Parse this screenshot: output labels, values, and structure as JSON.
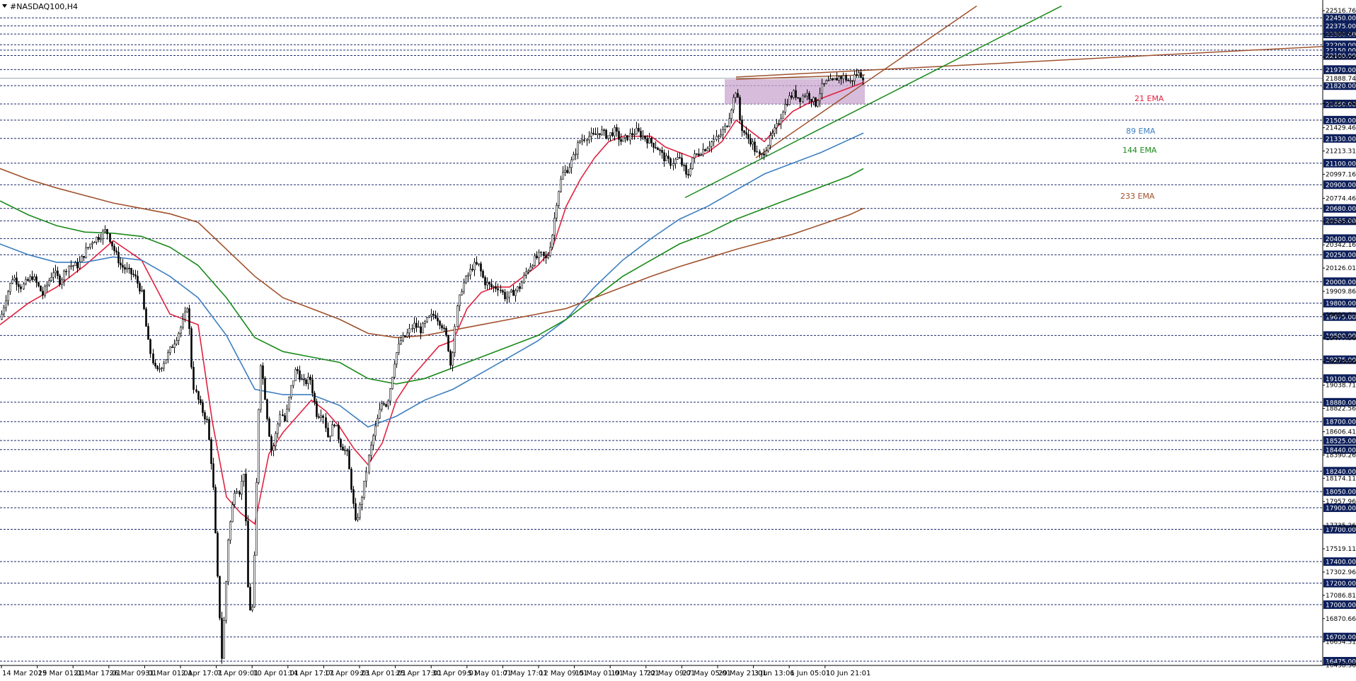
{
  "chart_data": {
    "type": "candlestick",
    "symbol": "#NASDAQ100,H4",
    "ylim": [
      16475,
      22550
    ],
    "grid": false,
    "x_ticks": [
      "14 Mar 2025",
      "19 Mar 01:01",
      "21 Mar 17:01",
      "26 Mar 09:01",
      "31 Mar 01:01",
      "2 Apr 17:01",
      "7 Apr 09:01",
      "10 Apr 01:01",
      "14 Apr 17:01",
      "17 Apr 09:01",
      "23 Apr 01:01",
      "25 Apr 17:01",
      "30 Apr 09:01",
      "5 May 01:01",
      "7 May 17:01",
      "12 May 09:01",
      "15 May 01:01",
      "19 May 17:01",
      "22 May 09:01",
      "27 May 05:01",
      "29 May 21:01",
      "3 Jun 13:01",
      "6 Jun 05:01",
      "10 Jun 21:01"
    ],
    "y_ticks": [
      "22516.76",
      "22300.91",
      "22085.06",
      "21869.21",
      "21653.36",
      "21429.46",
      "21213.31",
      "20997.16",
      "20774.46",
      "20558.31",
      "20342.16",
      "20126.01",
      "19909.86",
      "19693.71",
      "19477.56",
      "19254.86",
      "19038.71",
      "18822.56",
      "18606.41",
      "18390.26",
      "18174.11",
      "17957.96",
      "17735.26",
      "17519.11",
      "17302.96",
      "17086.81",
      "16870.66",
      "16654.51",
      "16438.36"
    ],
    "level_labels": [
      "22450.00",
      "22375.00",
      "22300.00",
      "22200.00",
      "22150.00",
      "22100.00",
      "21970.00",
      "21820.00",
      "21650.00",
      "21500.00",
      "21330.00",
      "21100.00",
      "20900.00",
      "20680.00",
      "20565.00",
      "20400.00",
      "20250.00",
      "20000.00",
      "19800.00",
      "19675.00",
      "19500.00",
      "19275.00",
      "19100.00",
      "18880.00",
      "18700.00",
      "18525.00",
      "18440.00",
      "18240.00",
      "18050.00",
      "17900.00",
      "17700.00",
      "17400.00",
      "17200.00",
      "17000.00",
      "16700.00",
      "16475.00"
    ],
    "current_price": "21888.74",
    "ema_labels": [
      {
        "text": "21 EMA",
        "color": "#e0223f"
      },
      {
        "text": "89 EMA",
        "color": "#3d7fc1"
      },
      {
        "text": "144 EMA",
        "color": "#1a8a1a"
      },
      {
        "text": "233 EMA",
        "color": "#a0522d"
      }
    ],
    "anchors": [
      [
        0,
        19650
      ],
      [
        8,
        19850
      ],
      [
        18,
        20050
      ],
      [
        30,
        19950
      ],
      [
        45,
        20050
      ],
      [
        60,
        19880
      ],
      [
        75,
        20100
      ],
      [
        85,
        20000
      ],
      [
        95,
        20150
      ],
      [
        110,
        20150
      ],
      [
        120,
        20280
      ],
      [
        130,
        20380
      ],
      [
        140,
        20420
      ],
      [
        150,
        20480
      ],
      [
        160,
        20300
      ],
      [
        170,
        20150
      ],
      [
        180,
        20100
      ],
      [
        190,
        20050
      ],
      [
        200,
        19900
      ],
      [
        210,
        19400
      ],
      [
        220,
        19150
      ],
      [
        235,
        19300
      ],
      [
        250,
        19500
      ],
      [
        260,
        19650
      ],
      [
        265,
        19800
      ],
      [
        272,
        19050
      ],
      [
        282,
        18850
      ],
      [
        292,
        18700
      ],
      [
        300,
        18200
      ],
      [
        306,
        17350
      ],
      [
        310,
        16900
      ],
      [
        313,
        16500
      ],
      [
        318,
        17050
      ],
      [
        322,
        17600
      ],
      [
        328,
        17900
      ],
      [
        332,
        18100
      ],
      [
        338,
        18050
      ],
      [
        344,
        18250
      ],
      [
        350,
        17100
      ],
      [
        355,
        16850
      ],
      [
        360,
        17600
      ],
      [
        364,
        18700
      ],
      [
        368,
        19250
      ],
      [
        373,
        19000
      ],
      [
        378,
        18700
      ],
      [
        384,
        18400
      ],
      [
        390,
        18600
      ],
      [
        396,
        18800
      ],
      [
        402,
        18700
      ],
      [
        410,
        19000
      ],
      [
        418,
        19200
      ],
      [
        428,
        19050
      ],
      [
        438,
        19100
      ],
      [
        448,
        18750
      ],
      [
        455,
        18800
      ],
      [
        463,
        18550
      ],
      [
        472,
        18700
      ],
      [
        480,
        18500
      ],
      [
        490,
        18400
      ],
      [
        497,
        18050
      ],
      [
        502,
        17750
      ],
      [
        508,
        17900
      ],
      [
        514,
        18100
      ],
      [
        520,
        18350
      ],
      [
        526,
        18550
      ],
      [
        534,
        18750
      ],
      [
        540,
        18900
      ],
      [
        546,
        18850
      ],
      [
        552,
        19050
      ],
      [
        558,
        19300
      ],
      [
        566,
        19450
      ],
      [
        574,
        19500
      ],
      [
        584,
        19600
      ],
      [
        594,
        19550
      ],
      [
        604,
        19650
      ],
      [
        614,
        19700
      ],
      [
        624,
        19600
      ],
      [
        632,
        19450
      ],
      [
        637,
        19200
      ],
      [
        644,
        19700
      ],
      [
        652,
        19950
      ],
      [
        660,
        20050
      ],
      [
        668,
        20150
      ],
      [
        676,
        20150
      ],
      [
        684,
        20000
      ],
      [
        694,
        19950
      ],
      [
        704,
        19950
      ],
      [
        714,
        19850
      ],
      [
        724,
        19900
      ],
      [
        734,
        19950
      ],
      [
        744,
        20100
      ],
      [
        754,
        20200
      ],
      [
        764,
        20250
      ],
      [
        772,
        20200
      ],
      [
        780,
        20450
      ],
      [
        787,
        20800
      ],
      [
        794,
        21000
      ],
      [
        802,
        21050
      ],
      [
        810,
        21150
      ],
      [
        818,
        21300
      ],
      [
        828,
        21350
      ],
      [
        838,
        21350
      ],
      [
        848,
        21400
      ],
      [
        858,
        21350
      ],
      [
        868,
        21400
      ],
      [
        878,
        21300
      ],
      [
        888,
        21350
      ],
      [
        898,
        21400
      ],
      [
        908,
        21350
      ],
      [
        918,
        21300
      ],
      [
        928,
        21250
      ],
      [
        938,
        21150
      ],
      [
        948,
        21100
      ],
      [
        958,
        21150
      ],
      [
        966,
        21050
      ],
      [
        970,
        20950
      ],
      [
        978,
        21150
      ],
      [
        988,
        21200
      ],
      [
        998,
        21250
      ],
      [
        1006,
        21300
      ],
      [
        1016,
        21350
      ],
      [
        1026,
        21450
      ],
      [
        1034,
        21650
      ],
      [
        1040,
        21800
      ],
      [
        1046,
        21450
      ],
      [
        1054,
        21350
      ],
      [
        1062,
        21300
      ],
      [
        1068,
        21200
      ],
      [
        1074,
        21150
      ],
      [
        1082,
        21250
      ],
      [
        1090,
        21350
      ],
      [
        1098,
        21450
      ],
      [
        1106,
        21600
      ],
      [
        1114,
        21700
      ],
      [
        1122,
        21750
      ],
      [
        1130,
        21700
      ],
      [
        1138,
        21750
      ],
      [
        1146,
        21700
      ],
      [
        1152,
        21650
      ],
      [
        1160,
        21800
      ],
      [
        1168,
        21850
      ],
      [
        1176,
        21850
      ],
      [
        1184,
        21900
      ],
      [
        1192,
        21900
      ],
      [
        1200,
        21850
      ],
      [
        1208,
        21920
      ],
      [
        1214,
        21930
      ],
      [
        1220,
        21900
      ]
    ],
    "emas": [
      {
        "name": "21 EMA",
        "color": "#e0223f",
        "x": [
          0,
          40,
          80,
          120,
          160,
          200,
          240,
          280,
          300,
          320,
          340,
          360,
          380,
          400,
          420,
          440,
          460,
          480,
          500,
          520,
          540,
          560,
          580,
          600,
          620,
          640,
          660,
          680,
          700,
          720,
          740,
          760,
          780,
          800,
          820,
          840,
          860,
          880,
          900,
          920,
          940,
          960,
          980,
          1000,
          1020,
          1040,
          1060,
          1080,
          1100,
          1120,
          1140,
          1160,
          1180,
          1200,
          1220
        ],
        "y": [
          19600,
          19800,
          19950,
          20150,
          20380,
          20200,
          19700,
          19600,
          18700,
          18000,
          17850,
          17750,
          18400,
          18600,
          18750,
          18900,
          18800,
          18650,
          18450,
          18300,
          18500,
          18900,
          19100,
          19250,
          19400,
          19450,
          19750,
          19900,
          19950,
          19950,
          20050,
          20150,
          20300,
          20700,
          20950,
          21150,
          21300,
          21350,
          21350,
          21350,
          21250,
          21200,
          21150,
          21200,
          21300,
          21500,
          21400,
          21300,
          21450,
          21580,
          21650,
          21700,
          21750,
          21800,
          21850
        ]
      },
      {
        "name": "89 EMA",
        "color": "#3d7fc1",
        "x": [
          0,
          40,
          80,
          120,
          160,
          200,
          240,
          280,
          320,
          360,
          400,
          440,
          480,
          520,
          560,
          600,
          640,
          680,
          720,
          760,
          800,
          840,
          880,
          920,
          960,
          1000,
          1040,
          1080,
          1120,
          1160,
          1200,
          1220
        ],
        "y": [
          20350,
          20250,
          20180,
          20180,
          20230,
          20200,
          20050,
          19850,
          19500,
          19000,
          18950,
          18950,
          18850,
          18650,
          18750,
          18900,
          19000,
          19150,
          19300,
          19450,
          19650,
          19950,
          20200,
          20400,
          20580,
          20700,
          20850,
          21000,
          21100,
          21200,
          21320,
          21380
        ]
      },
      {
        "name": "144 EMA",
        "color": "#1a8a1a",
        "x": [
          0,
          40,
          80,
          120,
          160,
          200,
          240,
          280,
          320,
          360,
          400,
          440,
          480,
          520,
          560,
          600,
          640,
          680,
          720,
          760,
          800,
          840,
          880,
          920,
          960,
          1000,
          1040,
          1080,
          1120,
          1160,
          1200,
          1220
        ],
        "y": [
          20750,
          20620,
          20520,
          20460,
          20450,
          20420,
          20320,
          20150,
          19850,
          19480,
          19350,
          19300,
          19250,
          19100,
          19050,
          19100,
          19200,
          19300,
          19400,
          19500,
          19650,
          19850,
          20050,
          20200,
          20350,
          20450,
          20580,
          20680,
          20780,
          20880,
          20980,
          21050
        ]
      },
      {
        "name": "233 EMA",
        "color": "#a0522d",
        "x": [
          0,
          40,
          80,
          120,
          160,
          200,
          240,
          280,
          320,
          360,
          400,
          440,
          480,
          520,
          560,
          600,
          640,
          680,
          720,
          760,
          800,
          840,
          880,
          920,
          960,
          1000,
          1040,
          1080,
          1120,
          1160,
          1200,
          1220
        ],
        "y": [
          21050,
          20950,
          20870,
          20800,
          20730,
          20680,
          20630,
          20550,
          20300,
          20050,
          19850,
          19750,
          19650,
          19520,
          19480,
          19500,
          19550,
          19600,
          19650,
          19700,
          19750,
          19850,
          19950,
          20050,
          20140,
          20220,
          20300,
          20370,
          20440,
          20530,
          20620,
          20680
        ]
      }
    ],
    "trendlines": [
      {
        "color": "#a0522d",
        "x": [
          1040,
          1916
        ],
        "y": [
          21900,
          22200
        ]
      },
      {
        "color": "#a0522d",
        "x": [
          1068,
          1380
        ],
        "y": [
          21150,
          22560
        ]
      },
      {
        "color": "#1a8a1a",
        "x": [
          968,
          1500
        ],
        "y": [
          20780,
          22560
        ]
      },
      {
        "color": "#a0522d",
        "x": [
          1040,
          1222
        ],
        "y": [
          21880,
          21920
        ]
      }
    ],
    "zone": {
      "x_from": 1024,
      "x_to": 1222,
      "y_from": 21650,
      "y_to": 21880,
      "color": "#c9a6cf"
    }
  }
}
